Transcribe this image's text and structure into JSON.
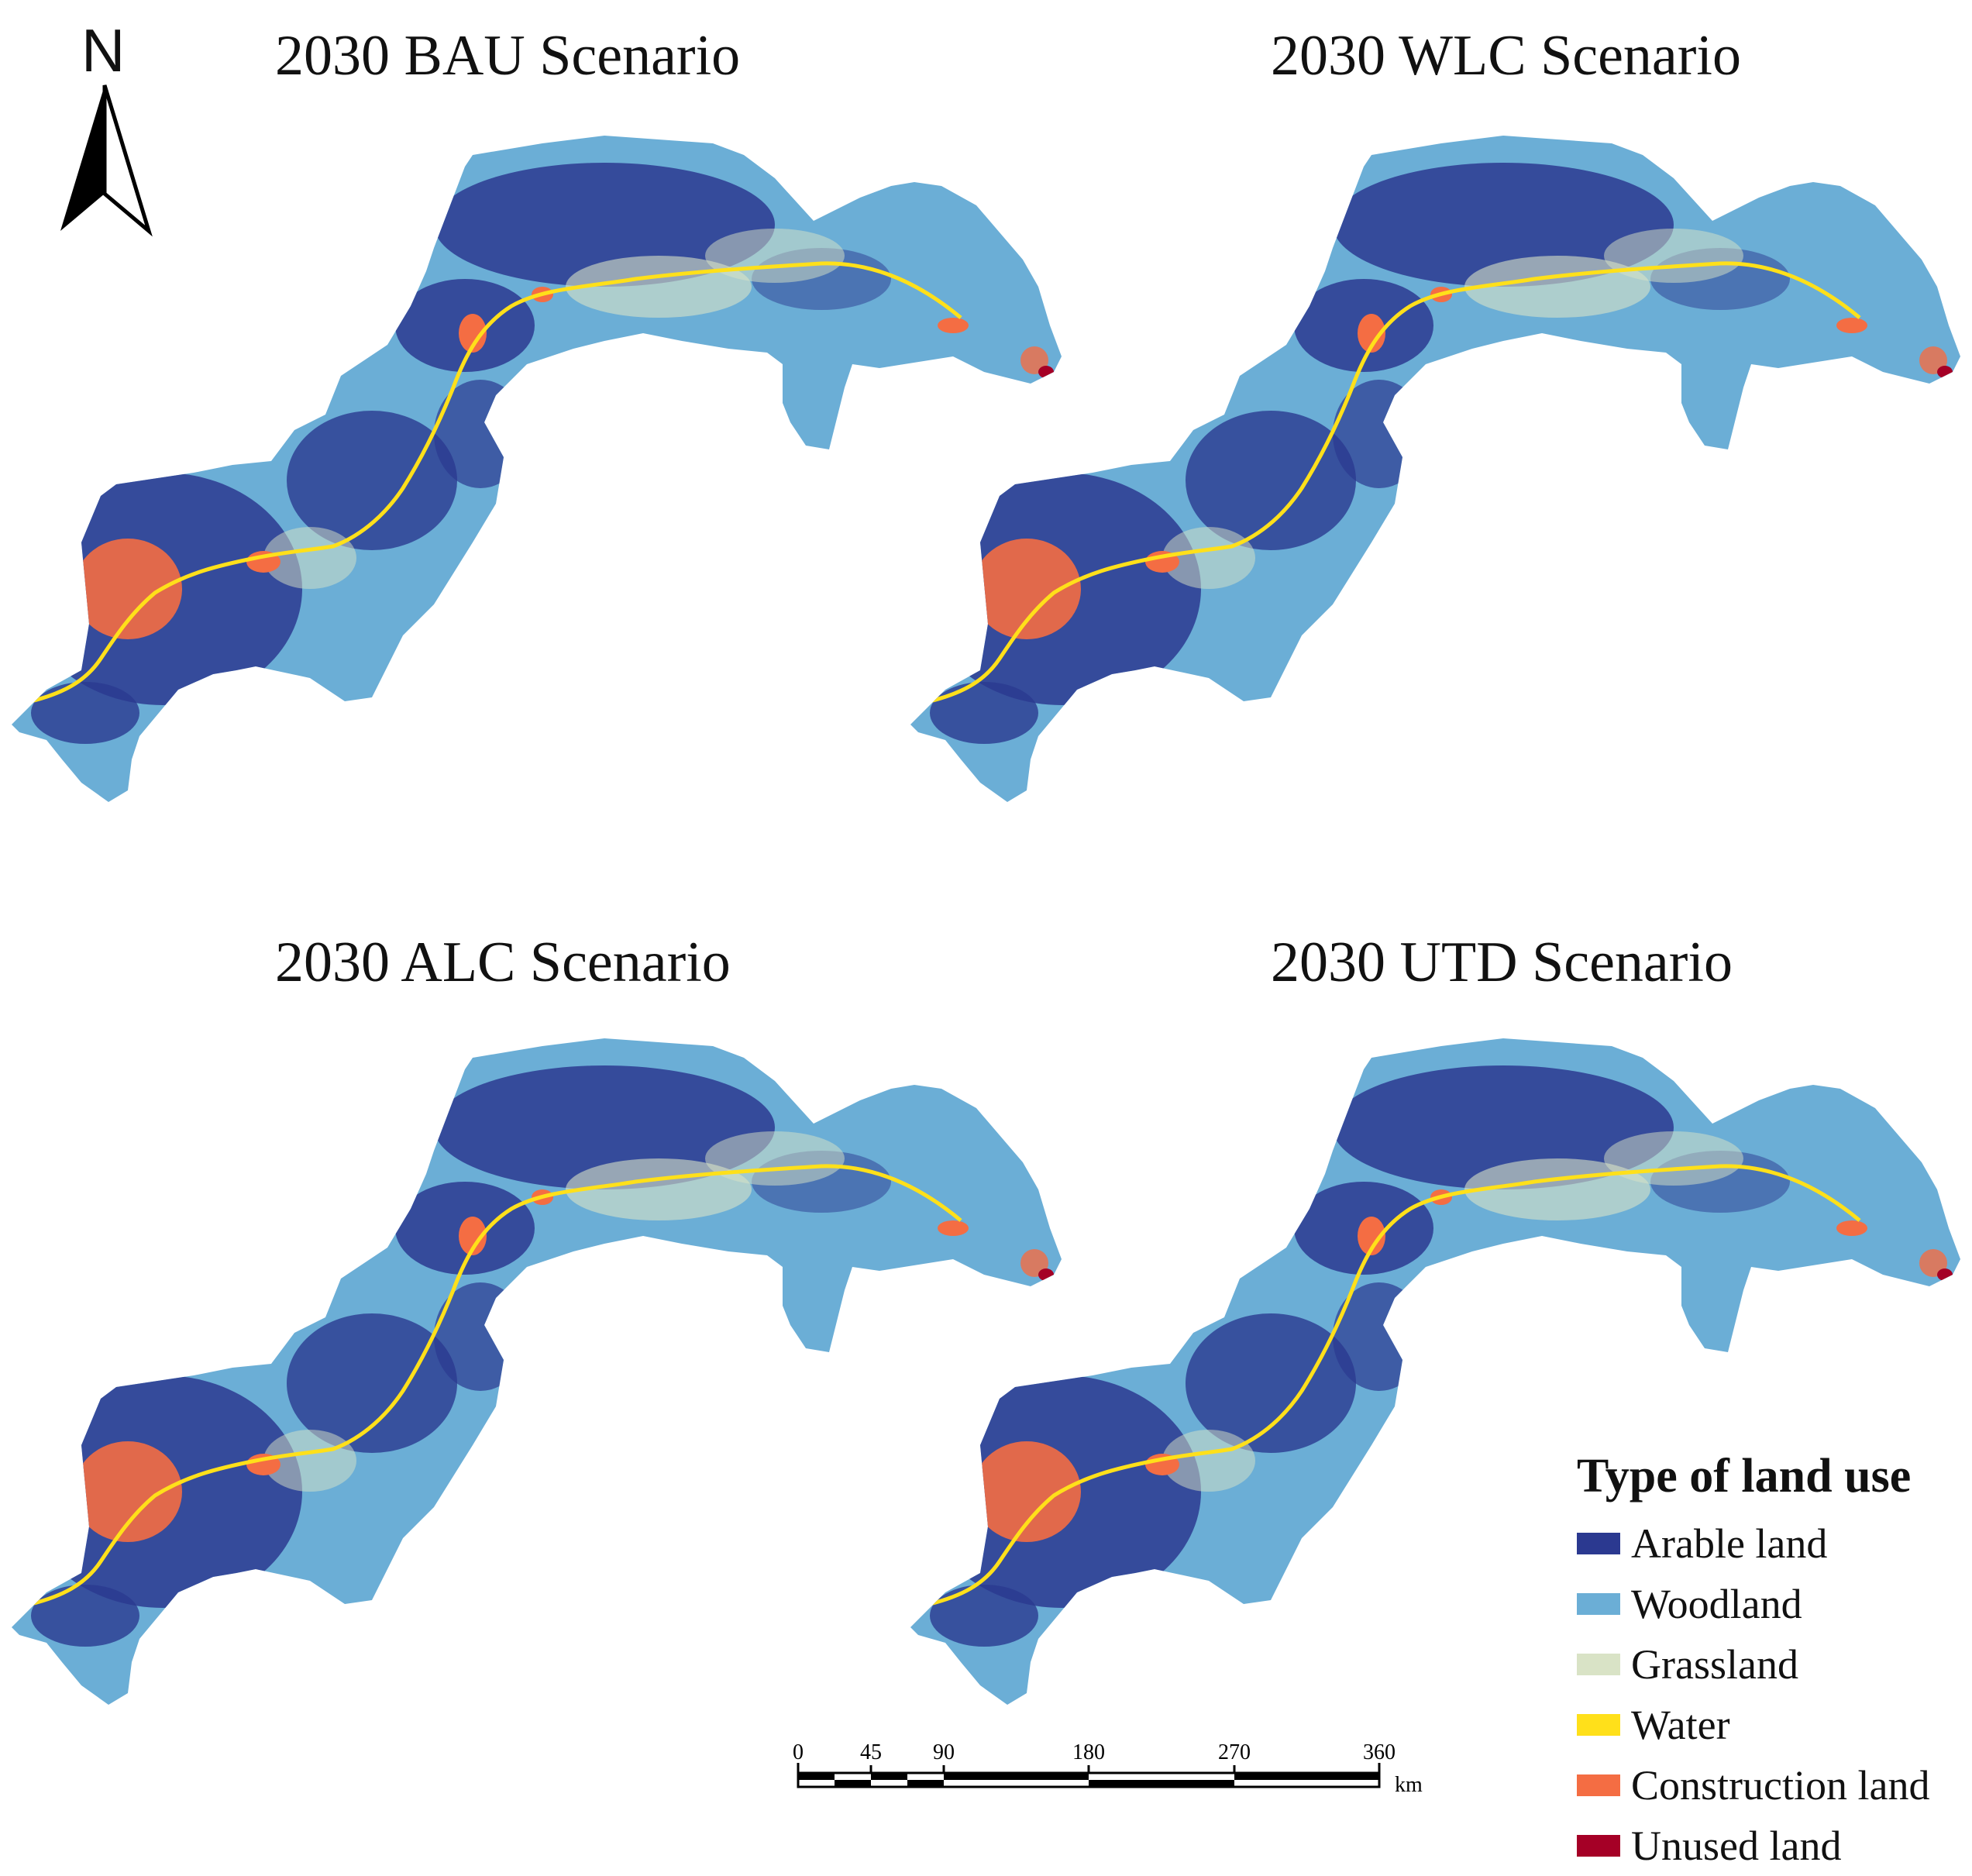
{
  "titles": {
    "bau": "2030 BAU Scenario",
    "wlc": "2030 WLC Scenario",
    "alc": "2030 ALC Scenario",
    "utd": "2030 UTD Scenario"
  },
  "north_arrow": {
    "label": "N"
  },
  "legend": {
    "title": "Type of land use",
    "items": [
      {
        "label": "Arable land",
        "color": "#2b3990"
      },
      {
        "label": "Woodland",
        "color": "#6baed6"
      },
      {
        "label": "Grassland",
        "color": "#d9e3c6"
      },
      {
        "label": "Water",
        "color": "#ffe01a"
      },
      {
        "label": "Construction land",
        "color": "#f46d43"
      },
      {
        "label": "Unused land",
        "color": "#a50026"
      }
    ]
  },
  "scale_bar": {
    "ticks": [
      "0",
      "45",
      "90",
      "180",
      "270",
      "360"
    ],
    "unit": "km"
  }
}
